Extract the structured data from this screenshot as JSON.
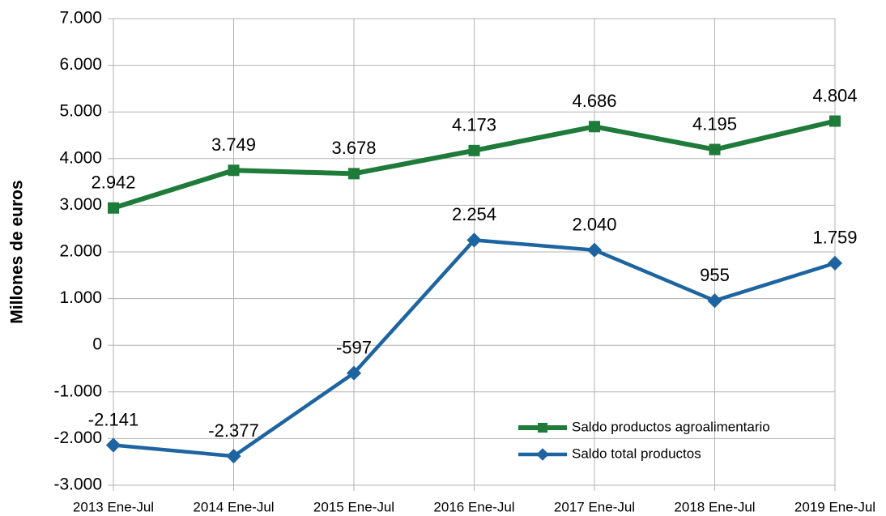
{
  "chart_data": {
    "type": "line",
    "y_label": "Millones de euros",
    "categories": [
      "2013 Ene-Jul",
      "2014 Ene-Jul",
      "2015 Ene-Jul",
      "2016 Ene-Jul",
      "2017 Ene-Jul",
      "2018 Ene-Jul",
      "2019 Ene-Jul"
    ],
    "series": [
      {
        "name": "Saldo productos agroalimentario",
        "color": "#1e7b3a",
        "marker": "square",
        "values": [
          2942,
          3749,
          3678,
          4173,
          4686,
          4195,
          4804
        ],
        "value_labels": [
          "2.942",
          "3.749",
          "3.678",
          "4.173",
          "4.686",
          "4.195",
          "4.804"
        ]
      },
      {
        "name": "Saldo total productos",
        "color": "#1d64a0",
        "marker": "diamond",
        "values": [
          -2141,
          -2377,
          -597,
          2254,
          2040,
          955,
          1759
        ],
        "value_labels": [
          "-2.141",
          "-2.377",
          "-597",
          "2.254",
          "2.040",
          "955",
          "1.759"
        ]
      }
    ],
    "ylim": [
      -3000,
      7000
    ],
    "yticks": [
      {
        "value": -3000,
        "label": "-3.000"
      },
      {
        "value": -2000,
        "label": "-2.000"
      },
      {
        "value": -1000,
        "label": "-1.000"
      },
      0,
      {
        "value": 1000,
        "label": "1.000"
      },
      {
        "value": 2000,
        "label": "2.000"
      },
      {
        "value": 3000,
        "label": "3.000"
      },
      {
        "value": 4000,
        "label": "4.000"
      },
      {
        "value": 5000,
        "label": "5.000"
      },
      {
        "value": 6000,
        "label": "6.000"
      },
      {
        "value": 7000,
        "label": "7.000"
      }
    ],
    "grid": true,
    "legend": "lower right"
  }
}
